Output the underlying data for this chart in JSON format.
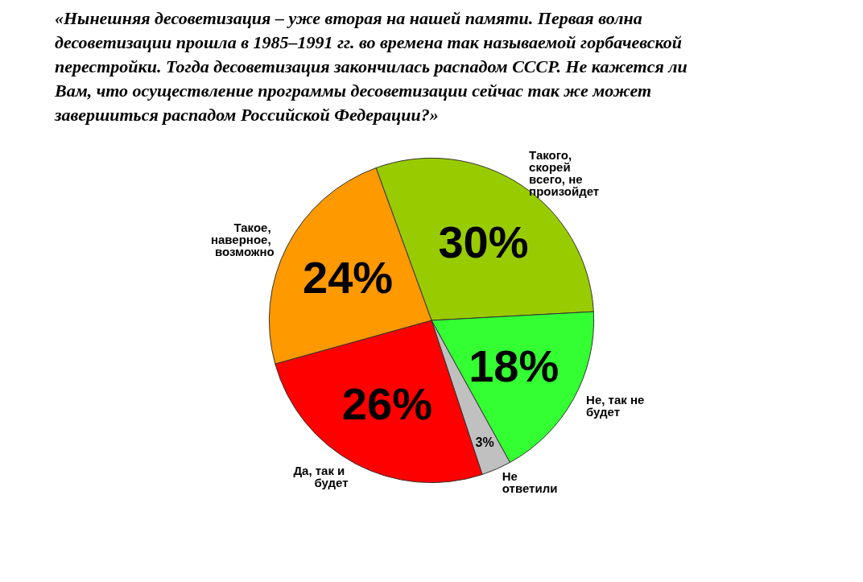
{
  "chart_data": {
    "type": "pie",
    "title": "«Нынешняя десоветизация – уже вторая на нашей памяти. Первая волна десоветизации прошла в 1985–1991 гг. во времена так называемой горбачевской перестройки. Тогда десоветизация закончилась распадом СССР. Не кажется ли Вам, что осуществление программы десоветизации сейчас так же может завершиться распадом Российской Федерации?»",
    "categories": [
      "Такого, скорей всего, не произойдет",
      "Не, так не будет",
      "Не ответили",
      "Да, так и будет",
      "Такое, наверное, возможно"
    ],
    "values": [
      30,
      18,
      3,
      26,
      24
    ],
    "colors": [
      "#99cc00",
      "#33ff33",
      "#c0c0c0",
      "#ff0000",
      "#ff9900"
    ],
    "value_labels": [
      "30%",
      "18%",
      "3%",
      "26%",
      "24%"
    ]
  }
}
